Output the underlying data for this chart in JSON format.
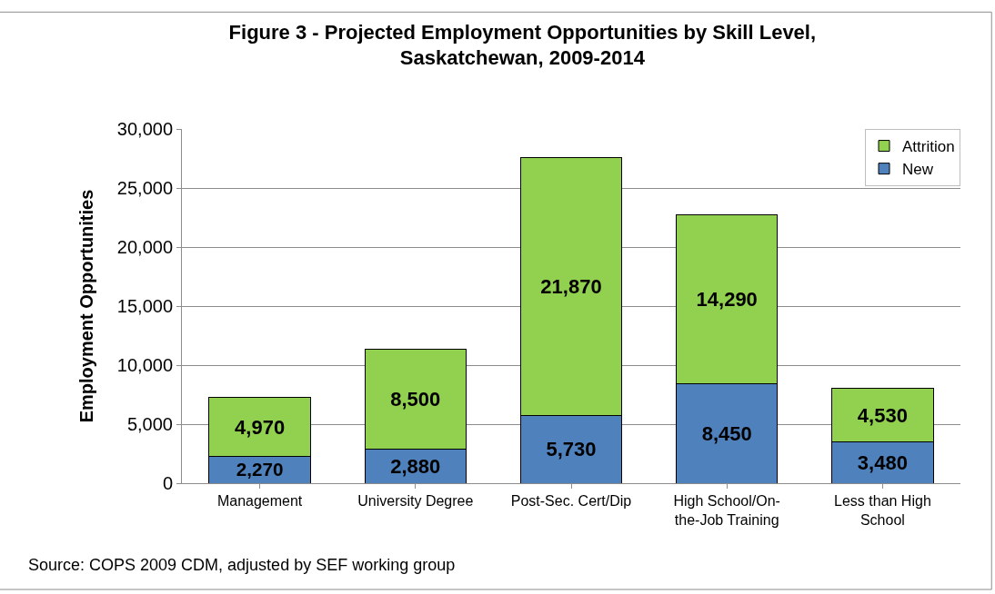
{
  "chart_data": {
    "type": "bar",
    "title": "Figure 3 - Projected Employment Opportunities by Skill Level, Saskatchewan, 2009-2014",
    "ylabel": "Employment Opportunities",
    "categories": [
      "Management",
      "University Degree",
      "Post-Sec. Cert/Dip",
      "High School/On-the-Job Training",
      "Less than High School"
    ],
    "series": [
      {
        "name": "New",
        "color": "#4f81bd",
        "values": [
          2270,
          2880,
          5730,
          8450,
          3480
        ],
        "value_labels": [
          "2,270",
          "2,880",
          "5,730",
          "8,450",
          "3,480"
        ]
      },
      {
        "name": "Attrition",
        "color": "#92d050",
        "values": [
          4970,
          8500,
          21870,
          14290,
          4530
        ],
        "value_labels": [
          "4,970",
          "8,500",
          "21,870",
          "14,290",
          "4,530"
        ]
      }
    ],
    "stacked": true,
    "grid": "y",
    "legend": "top right",
    "ylim": [
      0,
      30000
    ],
    "yticks": [
      {
        "value": 0,
        "label": "0"
      },
      {
        "value": 5000,
        "label": "5,000"
      },
      {
        "value": 10000,
        "label": "10,000"
      },
      {
        "value": 15000,
        "label": "15,000"
      },
      {
        "value": 20000,
        "label": "20,000"
      },
      {
        "value": 25000,
        "label": "25,000"
      },
      {
        "value": 30000,
        "label": "30,000"
      }
    ],
    "annotations": [
      "Source: COPS 2009 CDM, adjusted by SEF working group"
    ]
  }
}
